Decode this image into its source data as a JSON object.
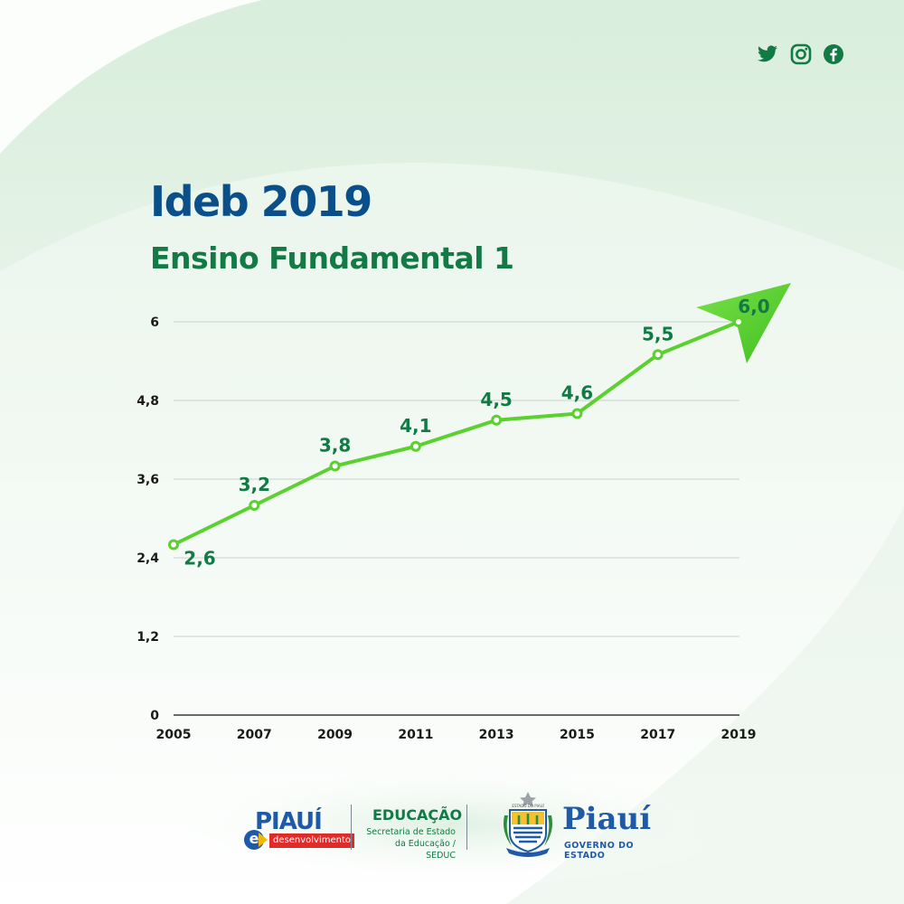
{
  "header": {
    "title": "Ideb 2019",
    "subtitle": "Ensino Fundamental 1",
    "social_icons": [
      "twitter-icon",
      "instagram-icon",
      "facebook-icon"
    ]
  },
  "colors": {
    "title": "#0a4f8a",
    "subtitle": "#127a45",
    "line": "#5ad12e",
    "data_label": "#127a45",
    "grid": "#c8d2cc"
  },
  "chart_data": {
    "type": "line",
    "title": "Ideb 2019",
    "subtitle": "Ensino Fundamental 1",
    "x": [
      "2005",
      "2007",
      "2009",
      "2011",
      "2013",
      "2015",
      "2017",
      "2019"
    ],
    "series": [
      {
        "values": [
          2.6,
          3.2,
          3.8,
          4.1,
          4.5,
          4.6,
          5.5,
          6.0
        ]
      }
    ],
    "data_labels": [
      "2,6",
      "3,2",
      "3,8",
      "4,1",
      "4,5",
      "4,6",
      "5,5",
      "6,0"
    ],
    "y_ticks": [
      0,
      1.2,
      2.4,
      3.6,
      4.8,
      6
    ],
    "y_tick_labels": [
      "0",
      "1,2",
      "2,4",
      "3,6",
      "4,8",
      "6"
    ],
    "ylim": [
      0,
      6
    ],
    "grid": true,
    "legend": "none",
    "xlabel": "",
    "ylabel": ""
  },
  "footer": {
    "logo1_name": "PIAUÍ",
    "logo1_letter": "e",
    "logo1_tag": "desenvolvimento",
    "logo2_title": "EDUCAÇÃO",
    "logo2_line1": "Secretaria de Estado",
    "logo2_line2": "da Educação / SEDUC",
    "logo3_name": "Piauí",
    "logo3_sub": "GOVERNO DO ESTADO",
    "crest_caption": "ESTADO DO PIAUÍ"
  }
}
